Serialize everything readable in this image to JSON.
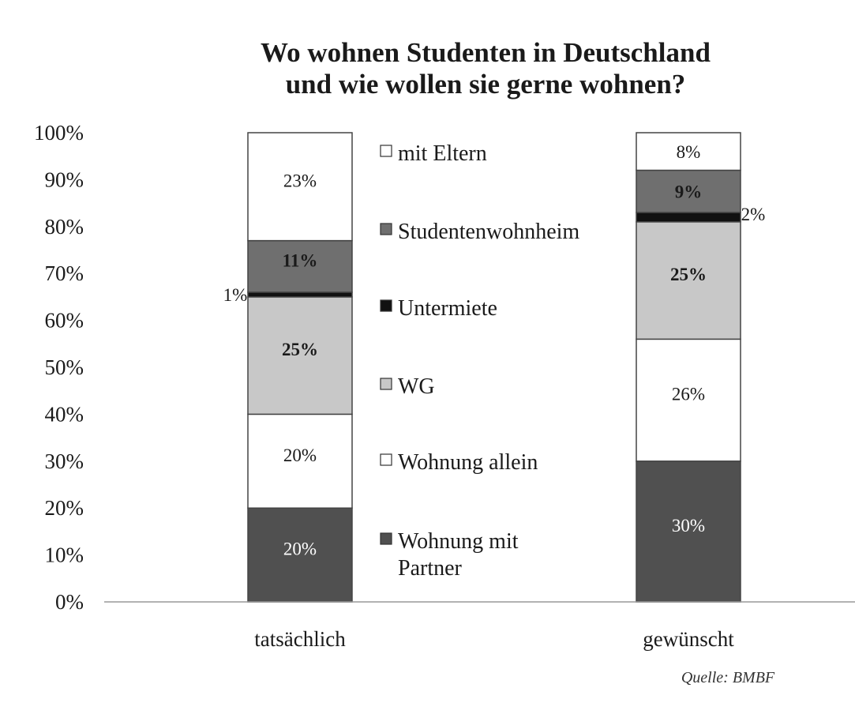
{
  "chart_data": {
    "type": "bar",
    "stacked": true,
    "percent": true,
    "title": "Wo wohnen Studenten in Deutschland",
    "subtitle": "und wie wollen sie gerne wohnen?",
    "categories": [
      "tatsächlich",
      "gewünscht"
    ],
    "ylim": [
      0,
      100
    ],
    "yticks": [
      "0%",
      "10%",
      "20%",
      "30%",
      "40%",
      "50%",
      "60%",
      "70%",
      "80%",
      "90%",
      "100%"
    ],
    "grid": false,
    "legend_position": "middle",
    "series": [
      {
        "name": "Wohnung mit Partner",
        "values": [
          20,
          30
        ],
        "labels": [
          "20%",
          "30%"
        ],
        "color": "#505050",
        "label_color": "#ffffff"
      },
      {
        "name": "Wohnung allein",
        "values": [
          20,
          26
        ],
        "labels": [
          "20%",
          "26%"
        ],
        "color": "#ffffff",
        "label_color": "#1a1a1a"
      },
      {
        "name": "WG",
        "values": [
          25,
          25
        ],
        "labels": [
          "25%",
          "25%"
        ],
        "color": "#c8c8c8",
        "label_color": "#1a1a1a"
      },
      {
        "name": "Untermiete",
        "values": [
          1,
          2
        ],
        "labels": [
          "1%",
          "2%"
        ],
        "color": "#111111",
        "label_color": "#1a1a1a"
      },
      {
        "name": "Studentenwohnheim",
        "values": [
          11,
          9
        ],
        "labels": [
          "11%",
          "9%"
        ],
        "color": "#6f6f6f",
        "label_color": "#1a1a1a"
      },
      {
        "name": "mit Eltern",
        "values": [
          23,
          8
        ],
        "labels": [
          "23%",
          "8%"
        ],
        "color": "#ffffff",
        "label_color": "#1a1a1a"
      }
    ],
    "legend_labels": [
      "mit Eltern",
      "Studentenwohnheim",
      "Untermiete",
      "WG",
      "Wohnung allein",
      "Wohnung mit",
      "Partner"
    ],
    "source": "Quelle: BMBF"
  }
}
